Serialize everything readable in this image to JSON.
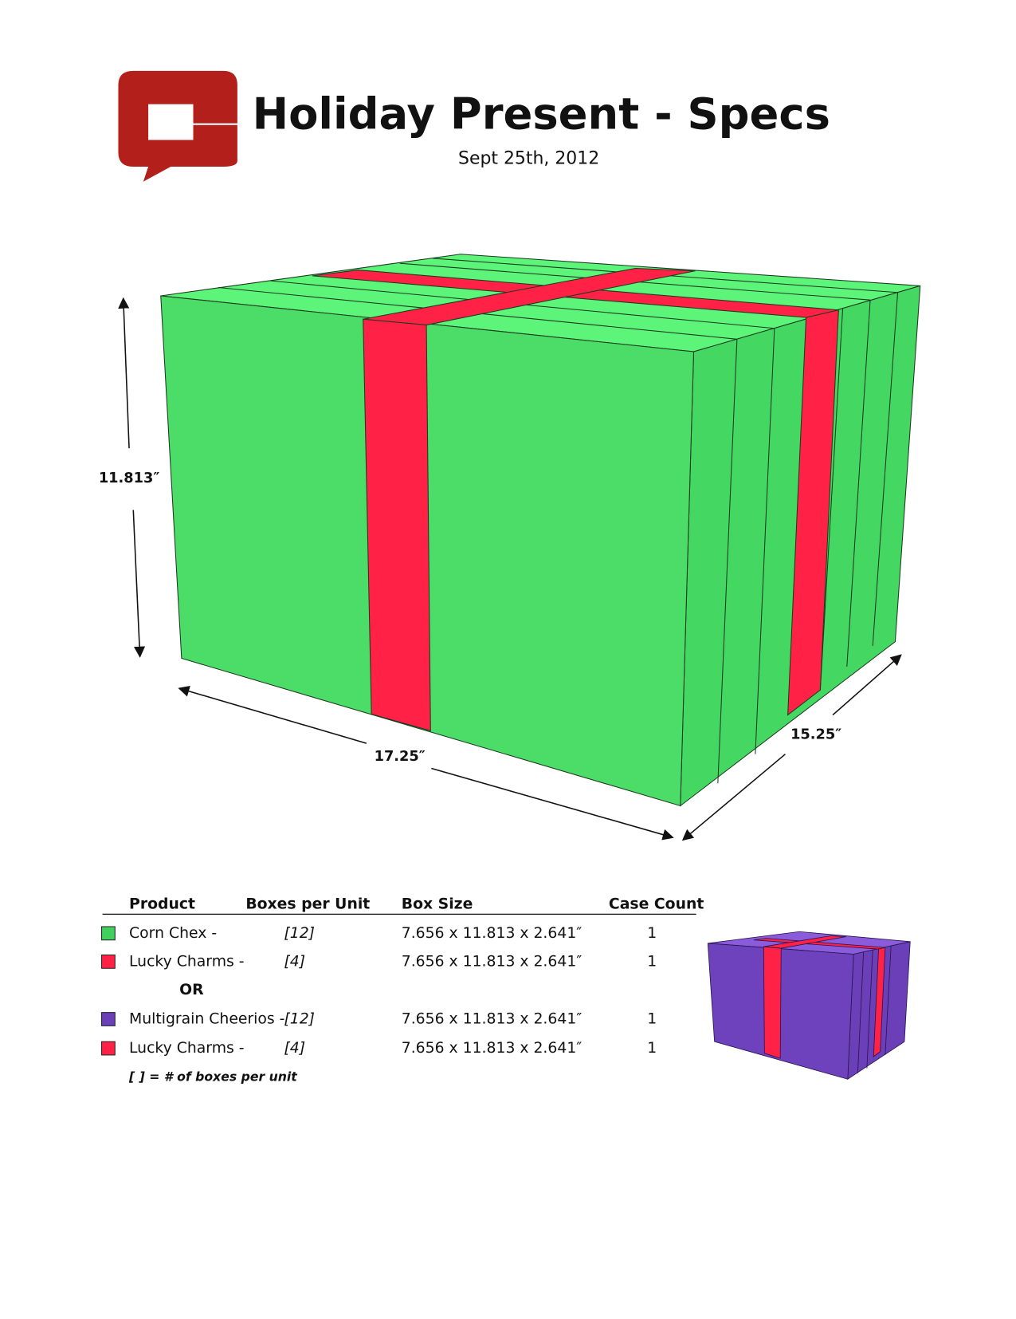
{
  "header": {
    "title": "Holiday Present - Specs",
    "date": "Sept 25th, 2012"
  },
  "dimensions": {
    "height": "11.813″",
    "width": "17.25″",
    "depth": "15.25″"
  },
  "table": {
    "columns": [
      "Product",
      "Boxes per Unit",
      "Box Size",
      "Case Count"
    ],
    "rows": [
      {
        "color": "#3fd15c",
        "product": "Corn Chex -",
        "boxes": "[12]",
        "size": "7.656 x 11.813 x 2.641″",
        "count": 1
      },
      {
        "color": "#ff2246",
        "product": "Lucky Charms -",
        "boxes": "[4]",
        "size": "7.656 x 11.813 x 2.641″",
        "count": 1
      },
      {
        "color": "#6a3fb8",
        "product": "Multigrain Cheerios -",
        "boxes": "[12]",
        "size": "7.656 x 11.813 x 2.641″",
        "count": 1
      },
      {
        "color": "#ff2246",
        "product": "Lucky Charms -",
        "boxes": "[4]",
        "size": "7.656 x 11.813 x 2.641″",
        "count": 1
      }
    ],
    "separator": "OR",
    "footnote": "[ ] = # of boxes per unit"
  }
}
